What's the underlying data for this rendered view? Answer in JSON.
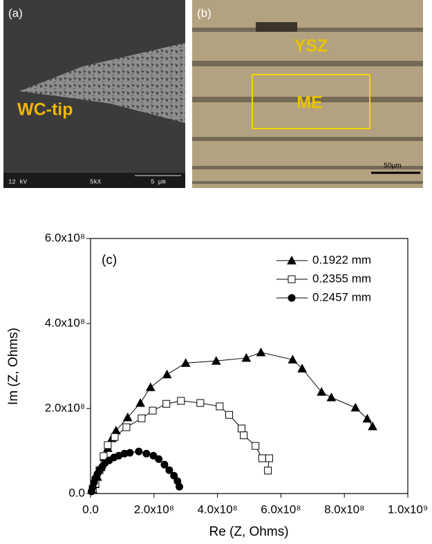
{
  "panels": {
    "a": {
      "label": "(a)",
      "annotation": "WC-tip",
      "footer": [
        "12 kV",
        "5kX",
        "5 µm"
      ]
    },
    "b": {
      "label": "(b)",
      "annotations": [
        "YSZ",
        "ME"
      ],
      "scale_bar": "50µm"
    }
  },
  "chart_data": {
    "type": "line",
    "annotation": "(c)",
    "xlabel": "Re (Z, Ohms)",
    "ylabel": "Im (Z, Ohms)",
    "xlim": [
      0,
      1000000000
    ],
    "ylim": [
      0,
      600000000
    ],
    "xticks": [
      {
        "value": 0,
        "label": "0.0"
      },
      {
        "value": 200000000,
        "label": "2.0x10⁸"
      },
      {
        "value": 400000000,
        "label": "4.0x10⁸"
      },
      {
        "value": 600000000,
        "label": "6.0x10⁸"
      },
      {
        "value": 800000000,
        "label": "8.0x10⁸"
      },
      {
        "value": 1000000000,
        "label": "1.0x10⁹"
      }
    ],
    "yticks": [
      {
        "value": 0,
        "label": "0.0"
      },
      {
        "value": 200000000,
        "label": "2.0x10⁸"
      },
      {
        "value": 400000000,
        "label": "4.0x10⁸"
      },
      {
        "value": 600000000,
        "label": "6.0x10⁸"
      }
    ],
    "legend": "upper right",
    "series": [
      {
        "name": "0.1922 mm",
        "color": "#000000",
        "marker": "triangle",
        "filled": true,
        "x": [
          7000000,
          14000000,
          21700000,
          32600000,
          43500000,
          54300000,
          67400000,
          80400000,
          117000000,
          157000000,
          189000000,
          241000000,
          300000000,
          396000000,
          491000000,
          537000000,
          637000000,
          667000000,
          728000000,
          759000000,
          835000000,
          872000000,
          889000000
        ],
        "values": [
          10000000,
          22000000,
          39000000,
          62000000,
          85000000,
          107000000,
          130000000,
          148000000,
          179000000,
          213000000,
          250000000,
          280000000,
          307000000,
          312000000,
          319000000,
          332000000,
          315000000,
          294000000,
          239000000,
          226000000,
          202000000,
          176000000,
          158000000
        ]
      },
      {
        "name": "0.2355 mm",
        "color": "#000000",
        "marker": "square",
        "filled": false,
        "x": [
          7000000,
          15200000,
          28300000,
          41300000,
          54300000,
          76100000,
          113000000,
          161000000,
          196000000,
          239000000,
          285000000,
          346000000,
          407000000,
          437000000,
          476000000,
          483000000,
          520000000,
          541000000,
          563000000,
          559000000
        ],
        "values": [
          10000000,
          23000000,
          55000000,
          88000000,
          114000000,
          133000000,
          156000000,
          177000000,
          195000000,
          211000000,
          218000000,
          213000000,
          205000000,
          185000000,
          153000000,
          137000000,
          112000000,
          83000000,
          83000000,
          54000000
        ]
      },
      {
        "name": "0.2457 mm",
        "color": "#000000",
        "marker": "circle",
        "filled": true,
        "x": [
          3000000,
          6500000,
          10900000,
          15200000,
          21700000,
          28300000,
          37000000,
          45700000,
          58700000,
          73900000,
          89100000,
          107000000,
          124000000,
          152000000,
          176000000,
          198000000,
          215000000,
          233000000,
          248000000,
          263000000,
          274000000,
          280000000
        ],
        "values": [
          5000000,
          15000000,
          26000000,
          36000000,
          46000000,
          55000000,
          63000000,
          72000000,
          78000000,
          85000000,
          89000000,
          94000000,
          96000000,
          99000000,
          94000000,
          89000000,
          81000000,
          68000000,
          55000000,
          42000000,
          29000000,
          16000000
        ]
      }
    ]
  }
}
